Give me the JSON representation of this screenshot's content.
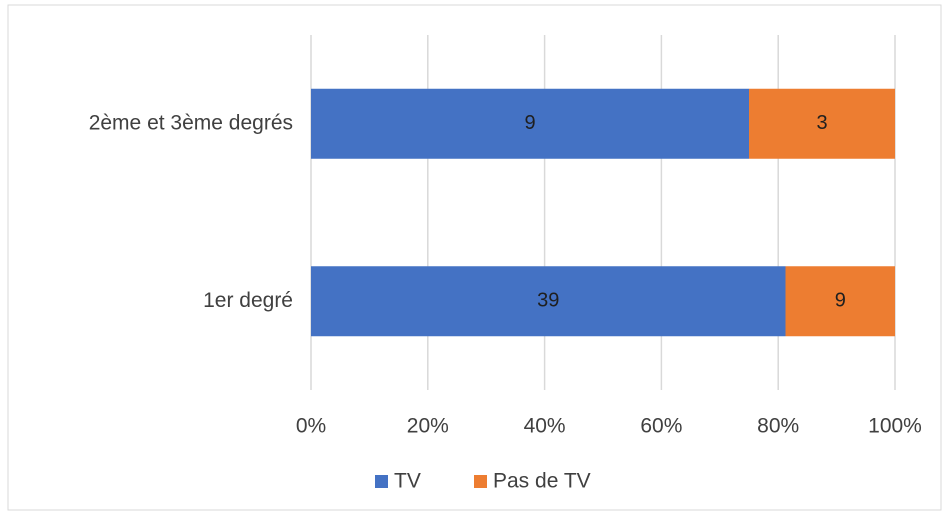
{
  "chart_data": {
    "type": "bar",
    "orientation": "horizontal",
    "stack": "percent",
    "categories": [
      "2ème et 3ème degrés",
      "1er degré"
    ],
    "series": [
      {
        "name": "TV",
        "color": "#4472c4",
        "values": [
          9,
          39
        ]
      },
      {
        "name": "Pas de TV",
        "color": "#ed7d31",
        "values": [
          3,
          9
        ]
      }
    ],
    "xlim": [
      0,
      100
    ],
    "xticks": [
      {
        "value": 0,
        "label": "0%"
      },
      {
        "value": 20,
        "label": "20%"
      },
      {
        "value": 40,
        "label": "40%"
      },
      {
        "value": 60,
        "label": "60%"
      },
      {
        "value": 80,
        "label": "80%"
      },
      {
        "value": 100,
        "label": "100%"
      }
    ],
    "grid": true,
    "legend": "bottom"
  }
}
